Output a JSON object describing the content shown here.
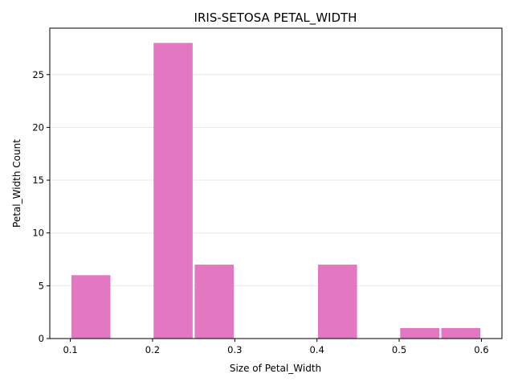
{
  "chart_data": {
    "type": "bar",
    "title": "IRIS-SETOSA PETAL_WIDTH",
    "xlabel": "Size of Petal_Width",
    "ylabel": "Petal_Width Count",
    "bins": [
      {
        "x0": 0.1,
        "x1": 0.15,
        "count": 6
      },
      {
        "x0": 0.15,
        "x1": 0.2,
        "count": 0
      },
      {
        "x0": 0.2,
        "x1": 0.25,
        "count": 28
      },
      {
        "x0": 0.25,
        "x1": 0.3,
        "count": 7
      },
      {
        "x0": 0.3,
        "x1": 0.35,
        "count": 0
      },
      {
        "x0": 0.35,
        "x1": 0.4,
        "count": 0
      },
      {
        "x0": 0.4,
        "x1": 0.45,
        "count": 7
      },
      {
        "x0": 0.45,
        "x1": 0.5,
        "count": 0
      },
      {
        "x0": 0.5,
        "x1": 0.55,
        "count": 1
      },
      {
        "x0": 0.55,
        "x1": 0.6,
        "count": 1
      }
    ],
    "xlim": [
      0.075,
      0.625
    ],
    "ylim": [
      0,
      29.4
    ],
    "xticks": [
      {
        "value": 0.1,
        "label": "0.1"
      },
      {
        "value": 0.2,
        "label": "0.2"
      },
      {
        "value": 0.3,
        "label": "0.3"
      },
      {
        "value": 0.4,
        "label": "0.4"
      },
      {
        "value": 0.5,
        "label": "0.5"
      },
      {
        "value": 0.6,
        "label": "0.6"
      }
    ],
    "yticks": [
      {
        "value": 0,
        "label": "0"
      },
      {
        "value": 5,
        "label": "5"
      },
      {
        "value": 10,
        "label": "10"
      },
      {
        "value": 15,
        "label": "15"
      },
      {
        "value": 20,
        "label": "20"
      },
      {
        "value": 25,
        "label": "25"
      }
    ],
    "grid": "horizontal",
    "colors": {
      "bar": "#e377c2",
      "grid": "#e8e8e8",
      "axis": "#000000"
    }
  }
}
